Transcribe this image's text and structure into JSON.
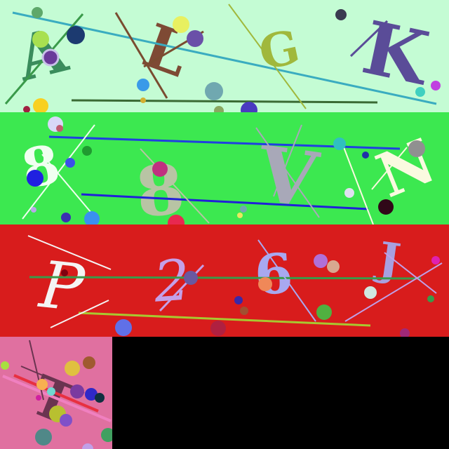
{
  "background": "#000000",
  "rows": [
    {
      "name": "row-1",
      "bg": "#c4fcd4",
      "glyphs": [
        {
          "name": "glyph-a",
          "text": "A",
          "color": "#3a8c5c"
        },
        {
          "name": "glyph-l",
          "text": "L",
          "color": "#7e4a34"
        },
        {
          "name": "glyph-g",
          "text": "G",
          "color": "#a0b83c"
        },
        {
          "name": "glyph-k",
          "text": "K",
          "color": "#5a4c98"
        }
      ]
    },
    {
      "name": "row-2",
      "bg": "#3ce850",
      "glyphs": [
        {
          "name": "glyph-8-white",
          "text": "8",
          "color": "#f0fff0"
        },
        {
          "name": "glyph-8-gray",
          "text": "8",
          "color": "#b8c4a4"
        },
        {
          "name": "glyph-v",
          "text": "V",
          "color": "#a8a8b8"
        },
        {
          "name": "glyph-n",
          "text": "N",
          "color": "#fafae0"
        }
      ]
    },
    {
      "name": "row-3",
      "bg": "#d81c1c",
      "glyphs": [
        {
          "name": "glyph-p",
          "text": "P",
          "color": "#f4f4f4"
        },
        {
          "name": "glyph-2",
          "text": "2",
          "color": "#c4a0e8"
        },
        {
          "name": "glyph-6",
          "text": "6",
          "color": "#a8a8f0"
        },
        {
          "name": "glyph-j",
          "text": "J",
          "color": "#a8a0e0"
        }
      ]
    },
    {
      "name": "row-4",
      "bg": "#e070a0",
      "glyphs": [
        {
          "name": "glyph-t",
          "text": "T",
          "color": "#6a3450"
        }
      ]
    }
  ]
}
